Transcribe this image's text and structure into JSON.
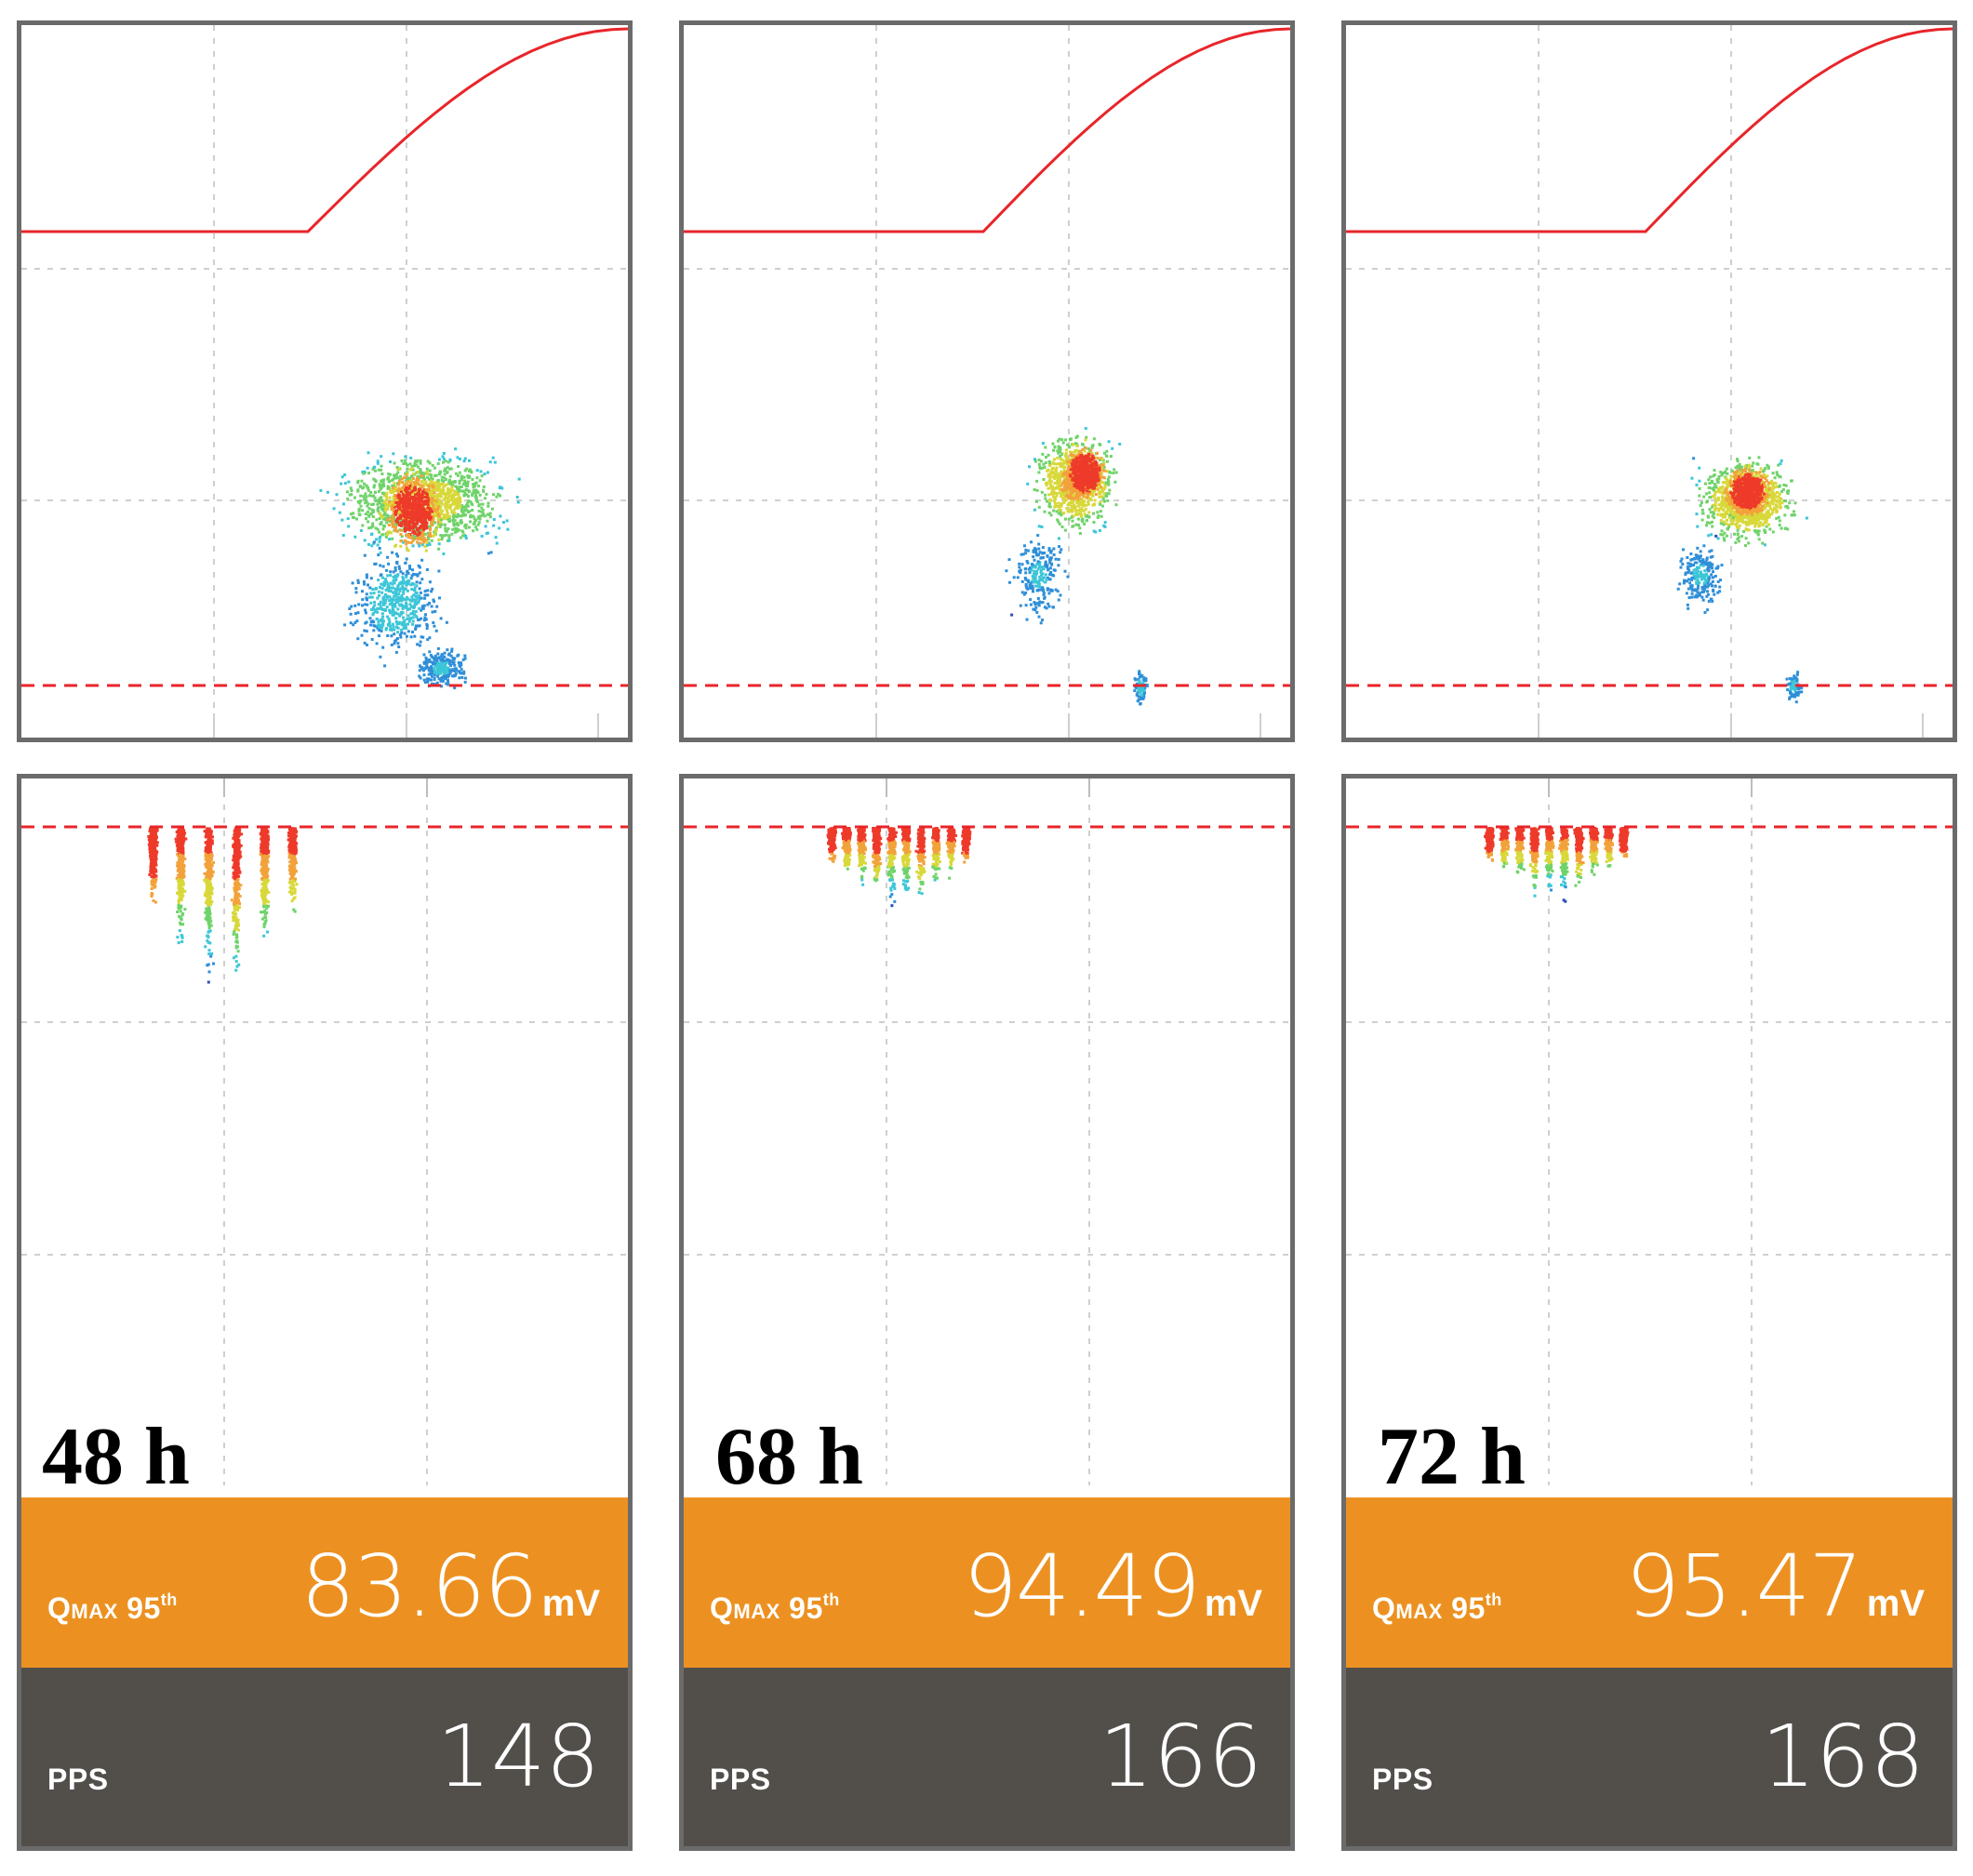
{
  "panels": [
    {
      "time_label": "48 h",
      "qmax_label": "Q",
      "qmax_label_sc": "MAX",
      "qmax_pct": "95",
      "qmax_pct_sup": "th",
      "qmax_value": "83.66",
      "qmax_unit": "mV",
      "pps_label": "PPS",
      "pps_value": "148"
    },
    {
      "time_label": "68 h",
      "qmax_label": "Q",
      "qmax_label_sc": "MAX",
      "qmax_pct": "95",
      "qmax_pct_sup": "th",
      "qmax_value": "94.49",
      "qmax_unit": "mV",
      "pps_label": "PPS",
      "pps_value": "166"
    },
    {
      "time_label": "72 h",
      "qmax_label": "Q",
      "qmax_label_sc": "MAX",
      "qmax_pct": "95",
      "qmax_pct_sup": "th",
      "qmax_value": "95.47",
      "qmax_unit": "mV",
      "pps_label": "PPS",
      "pps_value": "168"
    }
  ],
  "colors": {
    "frame": "#6b6b6b",
    "grid": "#cfcfcf",
    "reference_curve": "#e8252a",
    "threshold": "#e8252a",
    "qmax_bg": "#ec9121",
    "pps_bg": "#524f4b",
    "density": [
      "#2a4fb8",
      "#2f8fd8",
      "#3cc6d8",
      "#6fd36a",
      "#d8d83a",
      "#f2a23a",
      "#ee3a2a"
    ]
  }
}
